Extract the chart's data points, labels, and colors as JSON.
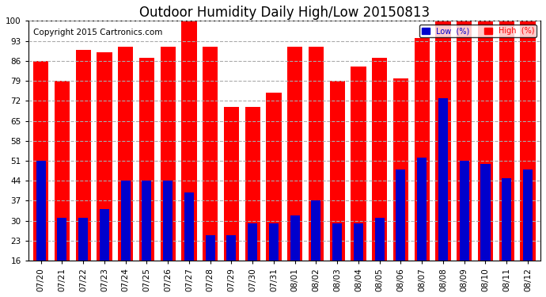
{
  "title": "Outdoor Humidity Daily High/Low 20150813",
  "copyright": "Copyright 2015 Cartronics.com",
  "dates": [
    "07/20",
    "07/21",
    "07/22",
    "07/23",
    "07/24",
    "07/25",
    "07/26",
    "07/27",
    "07/28",
    "07/29",
    "07/30",
    "07/31",
    "08/01",
    "08/02",
    "08/03",
    "08/04",
    "08/05",
    "08/06",
    "08/07",
    "08/08",
    "08/09",
    "08/10",
    "08/11",
    "08/12"
  ],
  "high": [
    86,
    79,
    90,
    89,
    91,
    87,
    91,
    100,
    91,
    70,
    70,
    75,
    91,
    91,
    79,
    84,
    87,
    80,
    94,
    100,
    100,
    100,
    100,
    100
  ],
  "low": [
    51,
    31,
    31,
    34,
    44,
    44,
    44,
    40,
    25,
    25,
    29,
    29,
    32,
    37,
    29,
    29,
    31,
    48,
    52,
    73,
    51,
    50,
    45,
    48
  ],
  "high_color": "#ff0000",
  "low_color": "#0000cc",
  "bg_color": "#ffffff",
  "grid_color": "#aaaaaa",
  "ylim_min": 16,
  "ylim_max": 100,
  "yticks": [
    16,
    23,
    30,
    37,
    44,
    51,
    58,
    65,
    72,
    79,
    86,
    93,
    100
  ],
  "title_fontsize": 12,
  "copyright_fontsize": 7.5,
  "tick_fontsize": 7.5,
  "legend_low_label": "Low  (%)",
  "legend_high_label": "High  (%)"
}
